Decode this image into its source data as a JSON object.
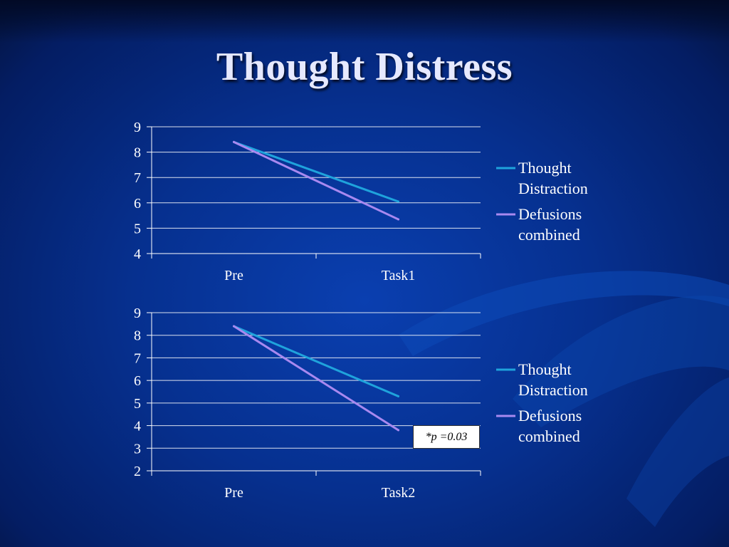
{
  "slide": {
    "title": "Thought Distress"
  },
  "colors": {
    "series_1": "#1fa3dc",
    "series_2": "#a889f0",
    "grid": "#ffffff",
    "text": "#ffffff"
  },
  "chart_data": [
    {
      "type": "line",
      "categories": [
        "Pre",
        "Task1"
      ],
      "yticks": [
        4,
        5,
        6,
        7,
        8,
        9
      ],
      "ylim": [
        4,
        9
      ],
      "grid": true,
      "legend_position": "right",
      "series": [
        {
          "name": [
            "Thought",
            "Distraction"
          ],
          "values": [
            8.4,
            6.05
          ]
        },
        {
          "name": [
            "Defusions",
            "combined"
          ],
          "values": [
            8.4,
            5.35
          ]
        }
      ]
    },
    {
      "type": "line",
      "categories": [
        "Pre",
        "Task2"
      ],
      "yticks": [
        2,
        3,
        4,
        5,
        6,
        7,
        8,
        9
      ],
      "ylim": [
        2,
        9
      ],
      "grid": true,
      "legend_position": "right",
      "series": [
        {
          "name": [
            "Thought",
            "Distraction"
          ],
          "values": [
            8.4,
            5.3
          ]
        },
        {
          "name": [
            "Defusions",
            "combined"
          ],
          "values": [
            8.4,
            3.8
          ]
        }
      ],
      "annotation": "*p =0.03"
    }
  ]
}
